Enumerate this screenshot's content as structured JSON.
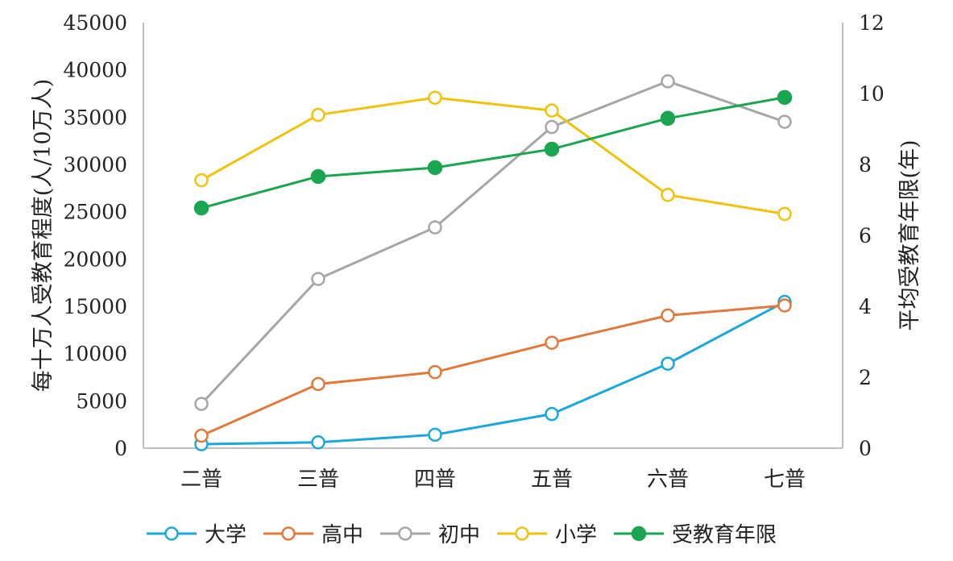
{
  "chart_data": {
    "type": "line",
    "categories": [
      "二普",
      "三普",
      "四普",
      "五普",
      "六普",
      "七普"
    ],
    "ylabel": "每十万人受教育程度(人/10万人)",
    "y2label": "平均受教育年限(年)",
    "ylim": [
      0,
      45000
    ],
    "yticks": [
      0,
      5000,
      10000,
      15000,
      20000,
      25000,
      30000,
      35000,
      40000,
      45000
    ],
    "y2lim": [
      0,
      12
    ],
    "y2ticks": [
      0,
      2,
      4,
      6,
      8,
      10,
      12
    ],
    "grid": false,
    "legend_position": "bottom",
    "series": [
      {
        "name": "大学",
        "axis": "left",
        "marker": "hollow",
        "color": "#1aa7d9",
        "values": [
          416,
          615,
          1422,
          3611,
          8930,
          15467
        ]
      },
      {
        "name": "高中",
        "axis": "left",
        "marker": "hollow",
        "color": "#e0793a",
        "values": [
          1319,
          6779,
          8039,
          11146,
          14032,
          15088
        ]
      },
      {
        "name": "初中",
        "axis": "left",
        "marker": "hollow",
        "color": "#a6a6a6",
        "values": [
          4680,
          17892,
          23344,
          33961,
          38788,
          34507
        ]
      },
      {
        "name": "小学",
        "axis": "left",
        "marker": "hollow",
        "color": "#f0c20a",
        "values": [
          28330,
          35237,
          37057,
          35701,
          26779,
          24767
        ]
      },
      {
        "name": "受教育年限",
        "axis": "right",
        "marker": "filled",
        "color": "#1aa550",
        "values": [
          6.77,
          7.66,
          7.91,
          8.43,
          9.3,
          9.89
        ]
      }
    ]
  }
}
